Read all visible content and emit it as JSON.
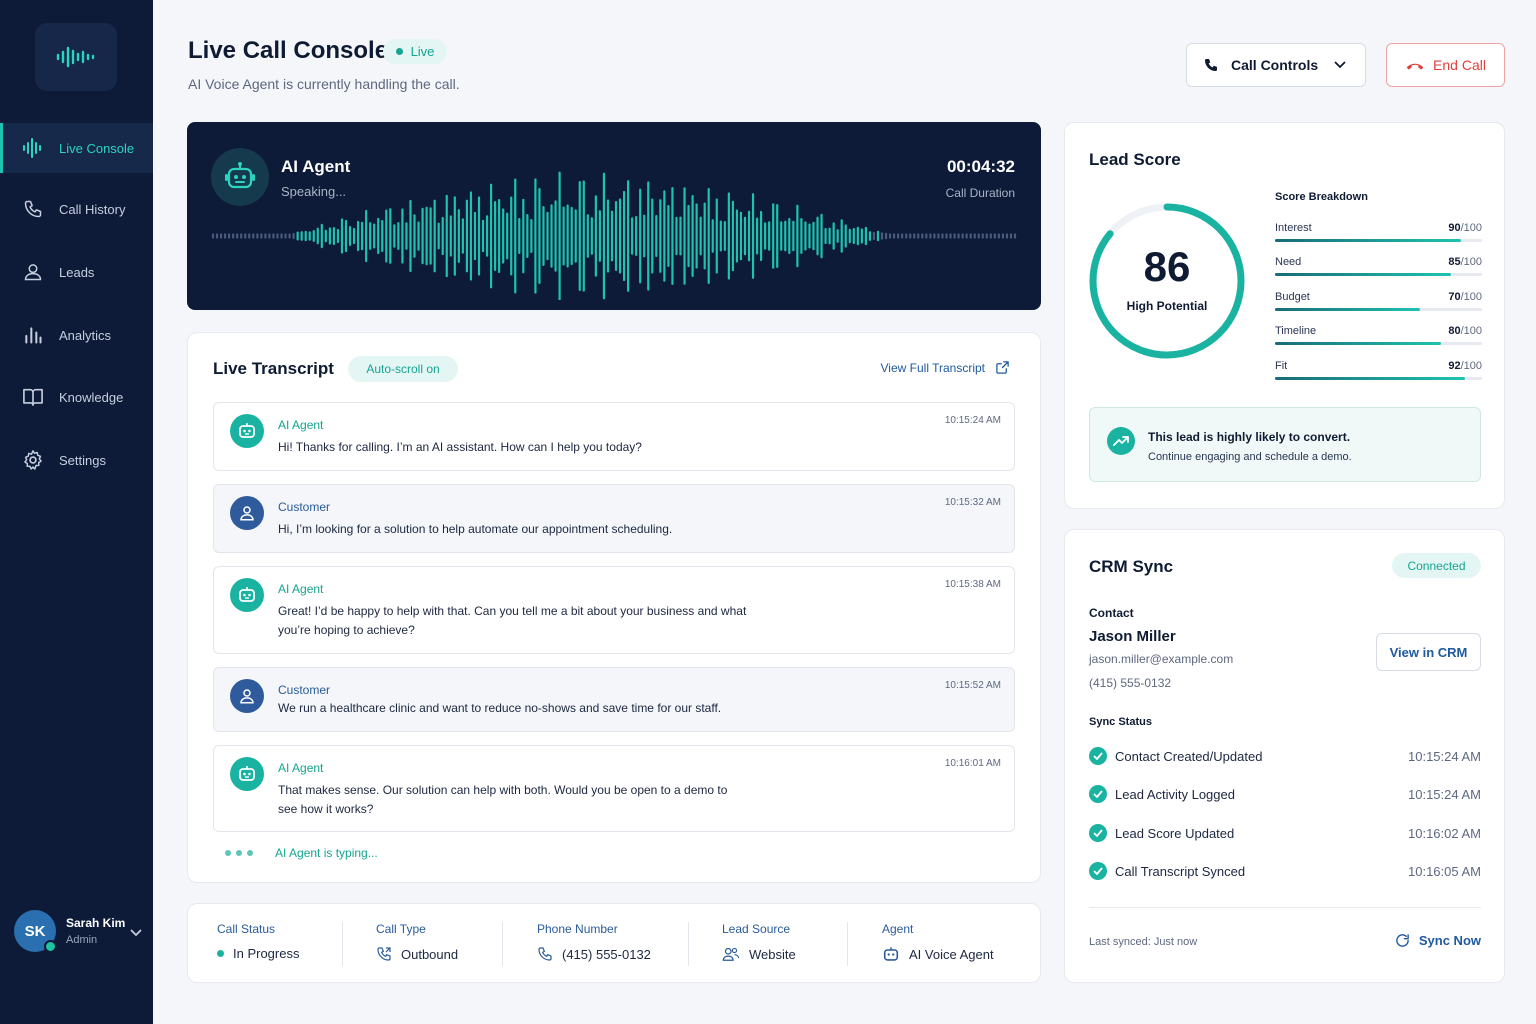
{
  "sidebar": {
    "logo_icon": "waveform-logo-icon",
    "items": [
      {
        "label": "Live Console",
        "icon": "waveform-icon",
        "active": true
      },
      {
        "label": "Call History",
        "icon": "phone-icon"
      },
      {
        "label": "Leads",
        "icon": "user-icon"
      },
      {
        "label": "Analytics",
        "icon": "bar-chart-icon"
      },
      {
        "label": "Knowledge",
        "icon": "book-icon"
      },
      {
        "label": "Settings",
        "icon": "gear-icon"
      }
    ],
    "user": {
      "initials": "SK",
      "name": "Sarah Kim",
      "role": "Admin"
    }
  },
  "header": {
    "title": "Live Call Console",
    "live_label": "Live",
    "subtitle": "AI Voice Agent is currently handling the call.",
    "call_controls_label": "Call Controls",
    "end_call_label": "End Call"
  },
  "agent": {
    "name": "AI Agent",
    "status": "Speaking...",
    "duration": "00:04:32",
    "duration_label": "Call Duration"
  },
  "transcript": {
    "title": "Live Transcript",
    "autoscroll_label": "Auto-scroll on",
    "view_full_label": "View Full Transcript",
    "messages": [
      {
        "speaker": "AI Agent",
        "type": "ai",
        "time": "10:15:24 AM",
        "text": "Hi! Thanks for calling. I’m an AI assistant. How can I help you today?"
      },
      {
        "speaker": "Customer",
        "type": "customer",
        "time": "10:15:32 AM",
        "text": "Hi, I’m looking for a solution to help automate our appointment scheduling."
      },
      {
        "speaker": "AI Agent",
        "type": "ai",
        "time": "10:15:38 AM",
        "text": "Great! I’d be happy to help with that. Can you tell me a bit about your business and what you’re hoping to achieve?"
      },
      {
        "speaker": "Customer",
        "type": "customer",
        "time": "10:15:52 AM",
        "text": "We run a healthcare clinic and want to reduce no-shows and save time for our staff."
      },
      {
        "speaker": "AI Agent",
        "type": "ai",
        "time": "10:16:01 AM",
        "text": "That makes sense. Our solution can help with both. Would you be open to a demo to see how it works?"
      }
    ],
    "typing_label": "AI Agent is typing..."
  },
  "call_info": [
    {
      "label": "Call Status",
      "value": "In Progress",
      "icon": "status-dot-icon"
    },
    {
      "label": "Call Type",
      "value": "Outbound",
      "icon": "outbound-phone-icon"
    },
    {
      "label": "Phone Number",
      "value": "(415) 555-0132",
      "icon": "phone-icon"
    },
    {
      "label": "Lead Source",
      "value": "Website",
      "icon": "users-icon"
    },
    {
      "label": "Agent",
      "value": "AI Voice Agent",
      "icon": "robot-icon"
    }
  ],
  "lead_score": {
    "title": "Lead Score",
    "score": "86",
    "score_fraction": 0.86,
    "label": "High Potential",
    "breakdown_title": "Score Breakdown",
    "breakdown": [
      {
        "name": "Interest",
        "score": "90",
        "max": "/100",
        "fraction": 0.9
      },
      {
        "name": "Need",
        "score": "85",
        "max": "/100",
        "fraction": 0.85
      },
      {
        "name": "Budget",
        "score": "70",
        "max": "/100",
        "fraction": 0.7
      },
      {
        "name": "Timeline",
        "score": "80",
        "max": "/100",
        "fraction": 0.8
      },
      {
        "name": "Fit",
        "score": "92",
        "max": "/100",
        "fraction": 0.92
      }
    ],
    "insight_title": "This lead is highly likely to convert.",
    "insight_text": "Continue engaging and schedule a demo."
  },
  "crm": {
    "title": "CRM Sync",
    "status": "Connected",
    "contact_label": "Contact",
    "contact_name": "Jason Miller",
    "contact_email": "jason.miller@example.com",
    "contact_phone": "(415) 555-0132",
    "view_label": "View in CRM",
    "sync_status_label": "Sync Status",
    "sync_items": [
      {
        "name": "Contact Created/Updated",
        "time": "10:15:24 AM"
      },
      {
        "name": "Lead Activity Logged",
        "time": "10:15:24 AM"
      },
      {
        "name": "Lead Score Updated",
        "time": "10:16:02 AM"
      },
      {
        "name": "Call Transcript Synced",
        "time": "10:16:05 AM"
      }
    ],
    "last_synced": "Last synced: Just now",
    "sync_now_label": "Sync Now"
  },
  "colors": {
    "accent": "#1ec3b0",
    "navy": "#0d1a38",
    "danger": "#e0413e",
    "link": "#1f5aa0"
  }
}
